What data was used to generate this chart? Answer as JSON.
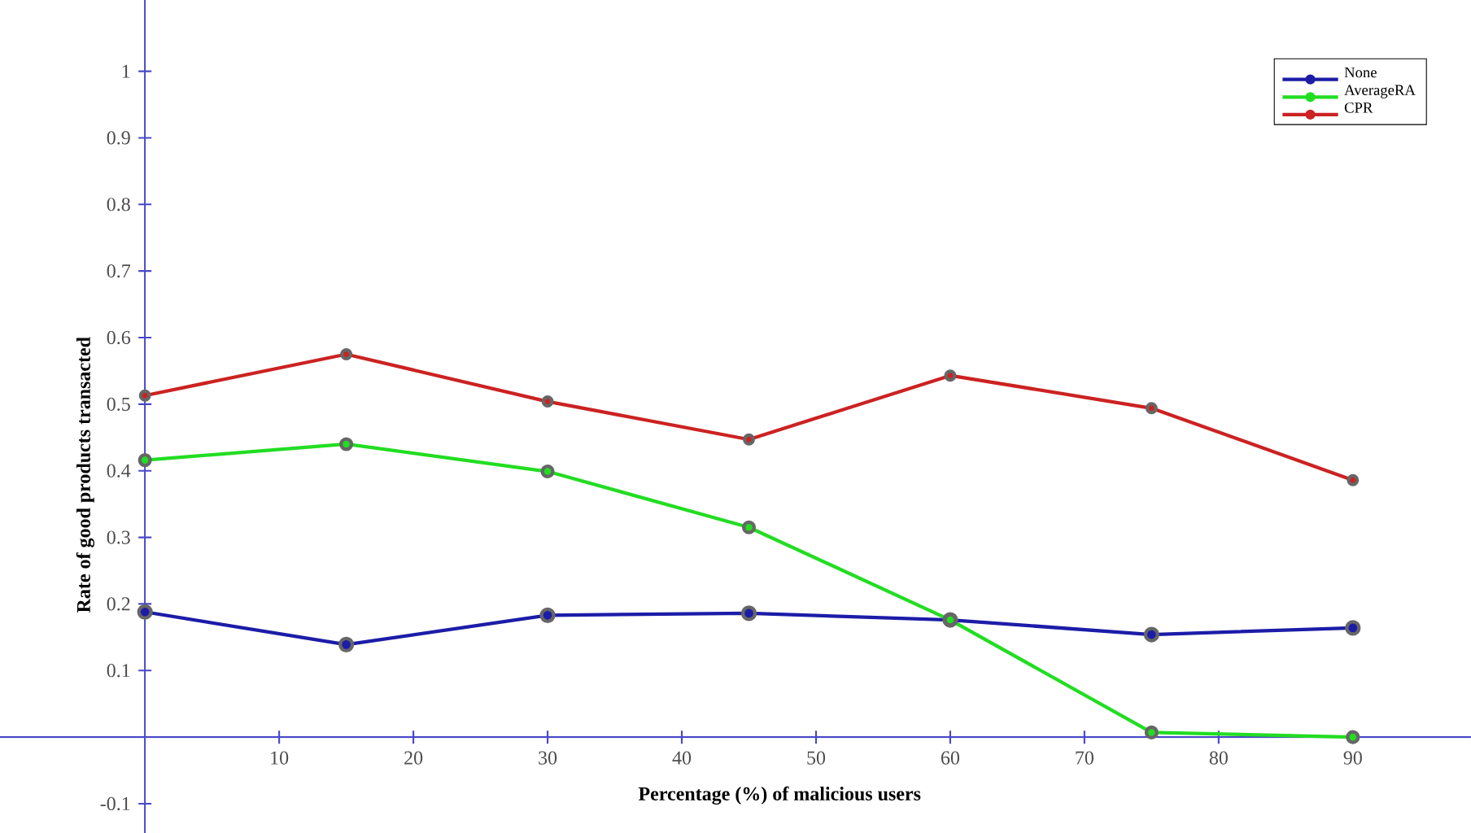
{
  "chart_data": {
    "type": "line",
    "xlabel": "Percentage (%) of malicious users",
    "ylabel": "Rate of good products transacted",
    "x": [
      0,
      15,
      30,
      45,
      60,
      75,
      90
    ],
    "series": [
      {
        "name": "None",
        "color": "#1c1ca8",
        "values": [
          0.188,
          0.139,
          0.183,
          0.186,
          0.176,
          0.154,
          0.164
        ]
      },
      {
        "name": "AverageRA",
        "color": "#22dd22",
        "values": [
          0.416,
          0.44,
          0.399,
          0.315,
          0.176,
          0.007,
          0.0
        ]
      },
      {
        "name": "CPR",
        "color": "#cc2222",
        "values": [
          0.513,
          0.575,
          0.504,
          0.447,
          0.543,
          0.494,
          0.386
        ]
      }
    ],
    "xlim": [
      -10.8,
      98.8
    ],
    "ylim": [
      -0.144,
      1.107
    ],
    "xticks": [
      10,
      20,
      30,
      40,
      50,
      60,
      70,
      80,
      90
    ],
    "yticks": [
      -0.1,
      0.1,
      0.2,
      0.3,
      0.4,
      0.5,
      0.6,
      0.7,
      0.8,
      0.9,
      1
    ],
    "legend": "top right",
    "marker": "circle",
    "line_style": "solid",
    "grid": false
  }
}
